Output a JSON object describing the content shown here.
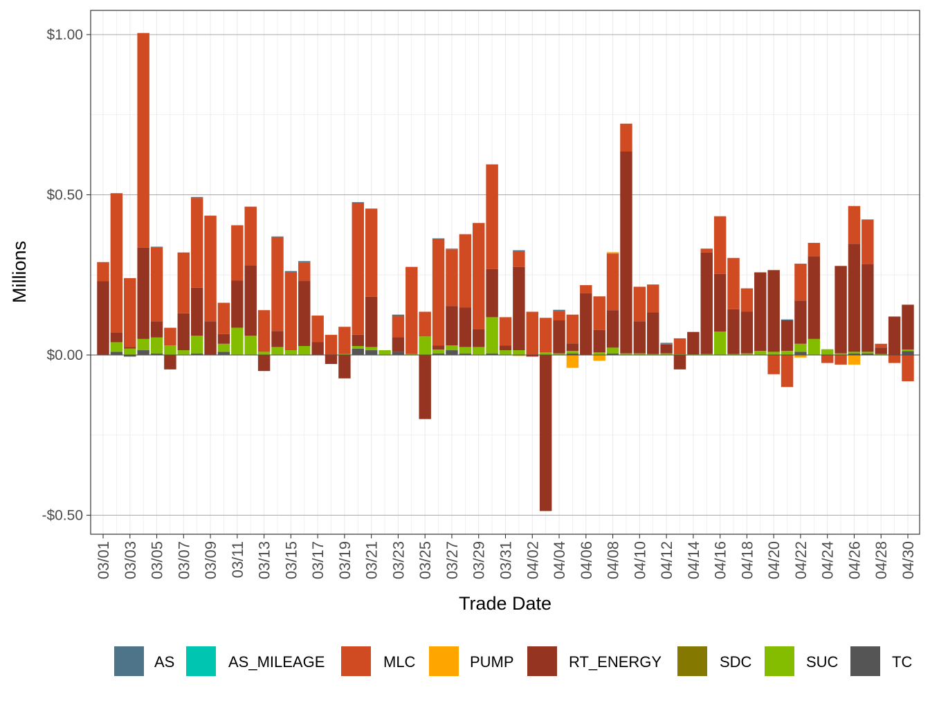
{
  "chart_data": {
    "type": "bar",
    "stacked": true,
    "xlabel": "Trade Date",
    "ylabel": "Millions",
    "ylim": [
      -0.56,
      1.08
    ],
    "y_ticks": [
      -0.5,
      0.0,
      0.5,
      1.0
    ],
    "y_tick_labels": [
      "-$0.50",
      "$0.00",
      "$0.50",
      "$1.00"
    ],
    "x_tick_labels": [
      "03/01",
      "03/03",
      "03/05",
      "03/07",
      "03/09",
      "03/11",
      "03/13",
      "03/15",
      "03/17",
      "03/19",
      "03/21",
      "03/23",
      "03/25",
      "03/27",
      "03/29",
      "03/31",
      "04/02",
      "04/04",
      "04/06",
      "04/08",
      "04/10",
      "04/12",
      "04/14",
      "04/16",
      "04/18",
      "04/20",
      "04/22",
      "04/24",
      "04/26",
      "04/28",
      "04/30"
    ],
    "grid": true,
    "legend_position": "bottom",
    "series_names": [
      "AS",
      "AS_MILEAGE",
      "MLC",
      "PUMP",
      "RT_ENERGY",
      "SDC",
      "SUC",
      "TC"
    ],
    "colors": {
      "AS": "#4E7489",
      "AS_MILEAGE": "#00C5B0",
      "MLC": "#D04A22",
      "PUMP": "#FFA500",
      "RT_ENERGY": "#953420",
      "SDC": "#857800",
      "SUC": "#84BC00",
      "TC": "#555555"
    },
    "categories": [
      "03/01",
      "03/02",
      "03/03",
      "03/04",
      "03/05",
      "03/06",
      "03/07",
      "03/08",
      "03/09",
      "03/10",
      "03/11",
      "03/12",
      "03/13",
      "03/14",
      "03/15",
      "03/16",
      "03/17",
      "03/18",
      "03/19",
      "03/20",
      "03/21",
      "03/22",
      "03/23",
      "03/24",
      "03/25",
      "03/26",
      "03/27",
      "03/28",
      "03/29",
      "03/30",
      "03/31",
      "04/01",
      "04/02",
      "04/03",
      "04/04",
      "04/05",
      "04/06",
      "04/07",
      "04/08",
      "04/09",
      "04/10",
      "04/11",
      "04/12",
      "04/13",
      "04/14",
      "04/15",
      "04/16",
      "04/17",
      "04/18",
      "04/19",
      "04/20",
      "04/21",
      "04/22",
      "04/23",
      "04/24",
      "04/25",
      "04/26",
      "04/27",
      "04/28",
      "04/29",
      "04/30"
    ],
    "days": [
      {
        "TC": 0,
        "SUC": 0,
        "RT_ENERGY": 0.23,
        "MLC": 0.06,
        "AS": 0,
        "PUMP": 0
      },
      {
        "TC": 0.01,
        "SUC": 0.03,
        "RT_ENERGY": 0.03,
        "MLC": 0.435,
        "AS": 0,
        "PUMP": 0
      },
      {
        "TC": -0.005,
        "SUC": 0.02,
        "RT_ENERGY": 0.005,
        "MLC": 0.215,
        "AS": 0,
        "PUMP": 0
      },
      {
        "TC": 0.015,
        "SUC": 0.035,
        "RT_ENERGY": 0.285,
        "MLC": 0.67,
        "AS": 0,
        "PUMP": 0
      },
      {
        "TC": 0.005,
        "SUC": 0.05,
        "RT_ENERGY": 0.05,
        "MLC": 0.23,
        "AS": 0.003,
        "PUMP": 0
      },
      {
        "TC": 0,
        "SUC": 0.03,
        "RT_ENERGY": -0.045,
        "MLC": 0.055,
        "AS": 0,
        "PUMP": 0
      },
      {
        "TC": 0,
        "SUC": 0.015,
        "RT_ENERGY": 0.115,
        "MLC": 0.19,
        "AS": 0,
        "PUMP": 0
      },
      {
        "TC": 0.005,
        "SUC": 0.055,
        "RT_ENERGY": 0.15,
        "MLC": 0.28,
        "AS": 0.003,
        "PUMP": 0
      },
      {
        "TC": 0,
        "SUC": 0,
        "RT_ENERGY": 0.105,
        "MLC": 0.33,
        "AS": 0,
        "PUMP": 0
      },
      {
        "TC": 0.01,
        "SUC": 0.025,
        "RT_ENERGY": 0.03,
        "MLC": 0.098,
        "AS": 0,
        "PUMP": 0
      },
      {
        "TC": 0,
        "SUC": 0.085,
        "RT_ENERGY": 0.148,
        "MLC": 0.172,
        "AS": 0,
        "PUMP": 0
      },
      {
        "TC": 0,
        "SUC": 0.06,
        "RT_ENERGY": 0.22,
        "MLC": 0.183,
        "AS": 0,
        "PUMP": 0
      },
      {
        "TC": 0,
        "SUC": 0.01,
        "RT_ENERGY": -0.05,
        "MLC": 0.13,
        "AS": 0,
        "PUMP": 0
      },
      {
        "TC": 0,
        "SUC": 0.025,
        "RT_ENERGY": 0.05,
        "MLC": 0.293,
        "AS": 0.002,
        "PUMP": 0
      },
      {
        "TC": 0,
        "SUC": 0.015,
        "RT_ENERGY": 0,
        "MLC": 0.243,
        "AS": 0.004,
        "PUMP": 0
      },
      {
        "TC": 0,
        "SUC": 0.028,
        "RT_ENERGY": 0.203,
        "MLC": 0.058,
        "AS": 0.004,
        "PUMP": 0
      },
      {
        "TC": 0,
        "SUC": 0,
        "RT_ENERGY": 0.04,
        "MLC": 0.083,
        "AS": 0,
        "PUMP": 0
      },
      {
        "TC": 0,
        "SUC": 0,
        "RT_ENERGY": -0.028,
        "MLC": 0.063,
        "AS": 0,
        "PUMP": 0
      },
      {
        "TC": 0,
        "SUC": 0.003,
        "RT_ENERGY": -0.073,
        "MLC": 0.085,
        "AS": 0,
        "PUMP": 0
      },
      {
        "TC": 0.02,
        "SUC": 0.008,
        "RT_ENERGY": 0.035,
        "MLC": 0.41,
        "AS": 0.004,
        "PUMP": 0
      },
      {
        "TC": 0.015,
        "SUC": 0.01,
        "RT_ENERGY": 0.157,
        "MLC": 0.275,
        "AS": 0,
        "PUMP": 0
      },
      {
        "TC": 0,
        "SUC": 0.015,
        "RT_ENERGY": 0,
        "MLC": 0,
        "AS": 0,
        "PUMP": 0
      },
      {
        "TC": 0.01,
        "SUC": 0,
        "RT_ENERGY": 0.045,
        "MLC": 0.067,
        "AS": 0.004,
        "PUMP": 0
      },
      {
        "TC": 0,
        "SUC": 0.003,
        "RT_ENERGY": 0,
        "MLC": 0.272,
        "AS": 0,
        "PUMP": 0
      },
      {
        "TC": 0,
        "SUC": 0.058,
        "RT_ENERGY": -0.2,
        "MLC": 0.077,
        "AS": 0,
        "PUMP": 0
      },
      {
        "TC": 0.005,
        "SUC": 0.012,
        "RT_ENERGY": 0.013,
        "MLC": 0.333,
        "AS": 0.001,
        "PUMP": 0
      },
      {
        "TC": 0.015,
        "SUC": 0.015,
        "RT_ENERGY": 0.123,
        "MLC": 0.177,
        "AS": 0.002,
        "PUMP": 0
      },
      {
        "TC": 0.005,
        "SUC": 0.02,
        "RT_ENERGY": 0.123,
        "MLC": 0.229,
        "AS": 0,
        "PUMP": 0
      },
      {
        "TC": 0,
        "SUC": 0.025,
        "RT_ENERGY": 0.055,
        "MLC": 0.332,
        "AS": 0,
        "PUMP": 0
      },
      {
        "TC": 0.005,
        "SUC": 0.113,
        "RT_ENERGY": 0.15,
        "MLC": 0.327,
        "AS": 0,
        "PUMP": 0
      },
      {
        "TC": 0,
        "SUC": 0.015,
        "RT_ENERGY": 0.015,
        "MLC": 0.088,
        "AS": 0,
        "PUMP": 0
      },
      {
        "TC": 0,
        "SUC": 0.015,
        "RT_ENERGY": 0.26,
        "MLC": 0.048,
        "AS": 0.004,
        "PUMP": -0.003
      },
      {
        "TC": 0,
        "SUC": 0,
        "RT_ENERGY": -0.005,
        "MLC": 0.135,
        "AS": 0,
        "PUMP": 0
      },
      {
        "TC": 0,
        "SUC": 0.008,
        "RT_ENERGY": -0.487,
        "MLC": 0.108,
        "AS": 0,
        "PUMP": 0
      },
      {
        "TC": 0,
        "SUC": 0.005,
        "RT_ENERGY": 0.103,
        "MLC": 0.03,
        "AS": 0.003,
        "PUMP": 0
      },
      {
        "TC": 0.005,
        "SUC": 0.008,
        "RT_ENERGY": 0.023,
        "MLC": 0.09,
        "AS": 0,
        "PUMP": -0.04
      },
      {
        "TC": 0,
        "SUC": 0,
        "RT_ENERGY": 0.193,
        "MLC": 0.025,
        "AS": 0,
        "PUMP": 0
      },
      {
        "TC": 0,
        "SUC": 0.008,
        "RT_ENERGY": 0.07,
        "MLC": 0.105,
        "AS": 0,
        "PUMP": -0.018
      },
      {
        "TC": 0.005,
        "SUC": 0.018,
        "RT_ENERGY": 0.117,
        "MLC": 0.177,
        "AS": 0,
        "PUMP": 0.004
      },
      {
        "TC": 0,
        "SUC": 0.005,
        "RT_ENERGY": 0.63,
        "MLC": 0.087,
        "AS": 0,
        "PUMP": 0
      },
      {
        "TC": 0,
        "SUC": 0.005,
        "RT_ENERGY": 0.1,
        "MLC": 0.108,
        "AS": 0,
        "PUMP": 0
      },
      {
        "TC": 0,
        "SUC": 0.003,
        "RT_ENERGY": 0.13,
        "MLC": 0.087,
        "AS": 0,
        "PUMP": 0
      },
      {
        "TC": 0,
        "SUC": 0.005,
        "RT_ENERGY": 0.028,
        "MLC": 0.002,
        "AS": 0.003,
        "PUMP": 0
      },
      {
        "TC": 0,
        "SUC": 0.002,
        "RT_ENERGY": -0.045,
        "MLC": 0.05,
        "AS": 0,
        "PUMP": 0
      },
      {
        "TC": 0,
        "SUC": 0.002,
        "RT_ENERGY": 0.07,
        "MLC": 0,
        "AS": 0,
        "PUMP": 0
      },
      {
        "TC": 0,
        "SUC": 0.003,
        "RT_ENERGY": 0.317,
        "MLC": 0.012,
        "AS": 0,
        "PUMP": 0
      },
      {
        "TC": 0,
        "SUC": 0.073,
        "RT_ENERGY": 0.18,
        "MLC": 0.18,
        "AS": 0,
        "PUMP": 0
      },
      {
        "TC": 0,
        "SUC": 0.003,
        "RT_ENERGY": 0.14,
        "MLC": 0.16,
        "AS": 0,
        "PUMP": 0
      },
      {
        "TC": 0,
        "SUC": 0.005,
        "RT_ENERGY": 0.13,
        "MLC": 0.073,
        "AS": 0,
        "PUMP": 0
      },
      {
        "TC": 0,
        "SUC": 0.013,
        "RT_ENERGY": 0.245,
        "MLC": 0,
        "AS": 0,
        "PUMP": 0
      },
      {
        "TC": 0,
        "SUC": 0.01,
        "RT_ENERGY": 0.255,
        "MLC": -0.06,
        "AS": 0,
        "PUMP": 0
      },
      {
        "TC": 0,
        "SUC": 0.013,
        "RT_ENERGY": 0.095,
        "MLC": -0.1,
        "AS": 0.003,
        "PUMP": 0
      },
      {
        "TC": 0.01,
        "SUC": 0.025,
        "RT_ENERGY": 0.135,
        "MLC": 0.115,
        "AS": 0,
        "PUMP": -0.008
      },
      {
        "TC": 0,
        "SUC": 0.05,
        "RT_ENERGY": 0.258,
        "MLC": 0.042,
        "AS": 0,
        "PUMP": 0
      },
      {
        "TC": 0,
        "SUC": 0.018,
        "RT_ENERGY": 0,
        "MLC": -0.025,
        "AS": 0,
        "PUMP": 0
      },
      {
        "TC": 0,
        "SUC": 0.005,
        "RT_ENERGY": 0.273,
        "MLC": -0.03,
        "AS": 0,
        "PUMP": 0
      },
      {
        "TC": 0.005,
        "SUC": 0.005,
        "RT_ENERGY": 0.337,
        "MLC": 0.118,
        "AS": 0,
        "PUMP": -0.03
      },
      {
        "TC": 0.005,
        "SUC": 0.005,
        "RT_ENERGY": 0.273,
        "MLC": 0.14,
        "AS": 0,
        "PUMP": 0
      },
      {
        "TC": 0,
        "SUC": 0.003,
        "RT_ENERGY": 0.02,
        "MLC": 0.012,
        "AS": 0,
        "PUMP": 0
      },
      {
        "TC": 0,
        "SUC": 0,
        "RT_ENERGY": 0.12,
        "MLC": -0.025,
        "AS": 0,
        "PUMP": 0
      },
      {
        "TC": 0.012,
        "SUC": 0.005,
        "RT_ENERGY": 0.14,
        "MLC": -0.082,
        "AS": 0,
        "PUMP": 0
      }
    ]
  }
}
